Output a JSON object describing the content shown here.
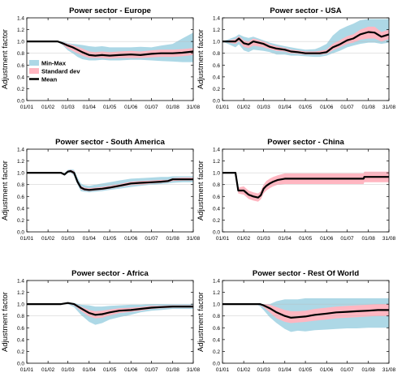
{
  "figure": {
    "ylabel": "Adjustment factor",
    "x_tick_labels": [
      "01/01",
      "01/02",
      "01/03",
      "01/04",
      "01/05",
      "01/06",
      "01/07",
      "01/08",
      "31/08"
    ],
    "y_tick_labels": [
      "0.0",
      "0.2",
      "0.4",
      "0.6",
      "0.8",
      "1.0",
      "1.2",
      "1.4"
    ],
    "legend": {
      "entries": [
        {
          "label": "Min-Max",
          "color": "#add8e6"
        },
        {
          "label": "Standard dev",
          "color": "#ffb6c1"
        },
        {
          "label": "Mean",
          "color": "#000000"
        }
      ]
    },
    "colors": {
      "minmax": "#add8e6",
      "std": "#ffb6c1",
      "mean": "#000000",
      "refline": "#bbbbbb"
    }
  },
  "chart_data": [
    {
      "type": "area",
      "title": "Power sector - Europe",
      "ylabel": "Adjustment factor",
      "xlim": [
        "01/01",
        "31/08"
      ],
      "ylim": [
        0,
        1.4
      ],
      "legend": "inside bottom-left",
      "x": [
        "01/01",
        "15/02",
        "22/02",
        "01/03",
        "08/03",
        "15/03",
        "22/03",
        "01/04",
        "10/04",
        "20/04",
        "01/05",
        "15/05",
        "01/06",
        "15/06",
        "01/07",
        "15/07",
        "01/08",
        "15/08",
        "31/08"
      ],
      "series": [
        {
          "name": "Mean",
          "values": [
            1.0,
            1.0,
            0.97,
            0.93,
            0.9,
            0.86,
            0.82,
            0.77,
            0.76,
            0.77,
            0.76,
            0.77,
            0.78,
            0.77,
            0.79,
            0.8,
            0.8,
            0.81,
            0.83
          ]
        },
        {
          "name": "Min-Max",
          "lower": [
            1.0,
            1.0,
            0.94,
            0.85,
            0.8,
            0.74,
            0.7,
            0.68,
            0.68,
            0.69,
            0.68,
            0.68,
            0.69,
            0.69,
            0.68,
            0.67,
            0.66,
            0.65,
            0.65
          ],
          "upper": [
            1.0,
            1.0,
            1.0,
            0.97,
            0.96,
            0.95,
            0.94,
            0.92,
            0.91,
            0.92,
            0.9,
            0.9,
            0.9,
            0.91,
            0.9,
            0.93,
            0.96,
            1.05,
            1.15
          ]
        },
        {
          "name": "Standard dev",
          "lower": [
            1.0,
            1.0,
            0.95,
            0.88,
            0.84,
            0.8,
            0.76,
            0.72,
            0.72,
            0.72,
            0.71,
            0.72,
            0.72,
            0.72,
            0.73,
            0.74,
            0.74,
            0.75,
            0.77
          ],
          "upper": [
            1.0,
            1.0,
            0.99,
            0.96,
            0.94,
            0.91,
            0.88,
            0.83,
            0.82,
            0.83,
            0.82,
            0.83,
            0.84,
            0.83,
            0.85,
            0.86,
            0.86,
            0.87,
            0.89
          ]
        }
      ]
    },
    {
      "type": "area",
      "title": "Power sector - USA",
      "ylabel": "Adjustment factor",
      "xlim": [
        "01/01",
        "31/08"
      ],
      "ylim": [
        0,
        1.4
      ],
      "x": [
        "01/01",
        "20/01",
        "25/01",
        "01/02",
        "08/02",
        "15/02",
        "01/03",
        "10/03",
        "20/03",
        "01/04",
        "10/04",
        "20/04",
        "01/05",
        "15/05",
        "22/05",
        "01/06",
        "10/06",
        "20/06",
        "01/07",
        "10/07",
        "20/07",
        "01/08",
        "10/08",
        "20/08",
        "31/08"
      ],
      "series": [
        {
          "name": "Mean",
          "values": [
            1.0,
            1.0,
            1.05,
            0.97,
            0.95,
            1.0,
            0.96,
            0.91,
            0.88,
            0.86,
            0.83,
            0.82,
            0.8,
            0.8,
            0.8,
            0.82,
            0.9,
            0.95,
            1.02,
            1.05,
            1.12,
            1.16,
            1.15,
            1.08,
            1.12
          ]
        },
        {
          "name": "Min-Max",
          "lower": [
            1.0,
            0.9,
            0.95,
            0.85,
            0.82,
            0.86,
            0.84,
            0.82,
            0.78,
            0.78,
            0.76,
            0.76,
            0.75,
            0.74,
            0.74,
            0.76,
            0.8,
            0.84,
            0.9,
            0.93,
            0.96,
            0.98,
            0.98,
            0.96,
            0.98
          ],
          "upper": [
            1.0,
            1.08,
            1.12,
            1.08,
            1.06,
            1.08,
            1.02,
            0.98,
            0.95,
            0.92,
            0.9,
            0.88,
            0.86,
            0.87,
            0.9,
            0.96,
            1.1,
            1.2,
            1.26,
            1.3,
            1.36,
            1.38,
            1.38,
            1.38,
            1.38
          ]
        },
        {
          "name": "Standard dev",
          "lower": [
            1.0,
            0.96,
            1.0,
            0.91,
            0.89,
            0.93,
            0.9,
            0.87,
            0.84,
            0.83,
            0.8,
            0.79,
            0.78,
            0.78,
            0.78,
            0.79,
            0.85,
            0.9,
            0.96,
            0.98,
            1.03,
            1.05,
            1.05,
            1.0,
            1.04
          ],
          "upper": [
            1.0,
            1.04,
            1.09,
            1.02,
            1.0,
            1.05,
            1.0,
            0.95,
            0.92,
            0.89,
            0.86,
            0.85,
            0.83,
            0.83,
            0.84,
            0.86,
            0.96,
            1.02,
            1.09,
            1.12,
            1.2,
            1.25,
            1.25,
            1.16,
            1.2
          ]
        }
      ]
    },
    {
      "type": "area",
      "title": "Power sector - South America",
      "ylabel": "Adjustment factor",
      "xlim": [
        "01/01",
        "31/08"
      ],
      "ylim": [
        0,
        1.4
      ],
      "x": [
        "01/01",
        "20/02",
        "25/02",
        "01/03",
        "05/03",
        "10/03",
        "15/03",
        "20/03",
        "25/03",
        "01/04",
        "10/04",
        "20/04",
        "01/05",
        "15/05",
        "01/06",
        "15/06",
        "01/07",
        "15/07",
        "25/07",
        "01/08",
        "15/08",
        "31/08"
      ],
      "series": [
        {
          "name": "Mean",
          "values": [
            1.0,
            1.0,
            0.97,
            1.02,
            1.03,
            1.0,
            0.85,
            0.75,
            0.72,
            0.71,
            0.72,
            0.73,
            0.75,
            0.78,
            0.82,
            0.83,
            0.84,
            0.85,
            0.86,
            0.89,
            0.89,
            0.89
          ]
        },
        {
          "name": "Min-Max",
          "lower": [
            1.0,
            1.0,
            0.95,
            1.0,
            1.0,
            0.95,
            0.8,
            0.69,
            0.68,
            0.67,
            0.68,
            0.69,
            0.71,
            0.73,
            0.76,
            0.78,
            0.8,
            0.81,
            0.82,
            0.83,
            0.84,
            0.84
          ],
          "upper": [
            1.0,
            1.0,
            1.0,
            1.05,
            1.06,
            1.05,
            0.92,
            0.82,
            0.79,
            0.78,
            0.8,
            0.82,
            0.84,
            0.87,
            0.9,
            0.91,
            0.92,
            0.93,
            0.93,
            0.94,
            0.94,
            0.94
          ]
        },
        {
          "name": "Standard dev",
          "lower": [
            1.0,
            1.0,
            0.96,
            1.01,
            1.01,
            0.97,
            0.82,
            0.72,
            0.7,
            0.69,
            0.7,
            0.71,
            0.73,
            0.76,
            0.79,
            0.8,
            0.82,
            0.83,
            0.84,
            0.86,
            0.87,
            0.87
          ],
          "upper": [
            1.0,
            1.0,
            0.99,
            1.04,
            1.05,
            1.03,
            0.88,
            0.78,
            0.75,
            0.74,
            0.75,
            0.76,
            0.78,
            0.81,
            0.85,
            0.86,
            0.87,
            0.88,
            0.88,
            0.91,
            0.92,
            0.92
          ]
        }
      ]
    },
    {
      "type": "area",
      "title": "Power sector - China",
      "ylabel": "Adjustment factor",
      "xlim": [
        "01/01",
        "31/08"
      ],
      "ylim": [
        0,
        1.4
      ],
      "x": [
        "01/01",
        "20/01",
        "24/01",
        "01/02",
        "08/02",
        "15/02",
        "22/02",
        "26/02",
        "01/03",
        "05/03",
        "10/03",
        "15/03",
        "22/03",
        "01/04",
        "01/05",
        "01/06",
        "01/07",
        "25/07",
        "26/07",
        "31/08"
      ],
      "series": [
        {
          "name": "Mean",
          "values": [
            1.0,
            1.0,
            0.7,
            0.7,
            0.63,
            0.6,
            0.58,
            0.62,
            0.73,
            0.78,
            0.82,
            0.85,
            0.88,
            0.9,
            0.9,
            0.9,
            0.9,
            0.9,
            0.93,
            0.93
          ]
        },
        {
          "name": "Standard dev",
          "lower": [
            1.0,
            1.0,
            0.65,
            0.63,
            0.56,
            0.53,
            0.51,
            0.55,
            0.65,
            0.7,
            0.74,
            0.77,
            0.8,
            0.81,
            0.81,
            0.81,
            0.81,
            0.81,
            0.84,
            0.84
          ],
          "upper": [
            1.0,
            1.0,
            0.75,
            0.77,
            0.7,
            0.67,
            0.65,
            0.69,
            0.8,
            0.86,
            0.9,
            0.93,
            0.96,
            0.99,
            0.99,
            0.99,
            0.99,
            0.99,
            1.02,
            1.02
          ]
        }
      ]
    },
    {
      "type": "area",
      "title": "Power sector - Africa",
      "ylabel": "Adjustment factor",
      "xlim": [
        "01/01",
        "31/08"
      ],
      "ylim": [
        0,
        1.4
      ],
      "x": [
        "01/01",
        "20/02",
        "01/03",
        "10/03",
        "20/03",
        "01/04",
        "10/04",
        "20/04",
        "01/05",
        "15/05",
        "01/06",
        "15/06",
        "01/07",
        "15/07",
        "01/08",
        "15/08",
        "31/08"
      ],
      "series": [
        {
          "name": "Mean",
          "values": [
            1.0,
            1.0,
            1.02,
            1.0,
            0.93,
            0.85,
            0.82,
            0.83,
            0.86,
            0.89,
            0.9,
            0.92,
            0.94,
            0.95,
            0.96,
            0.96,
            0.96
          ]
        },
        {
          "name": "Min-Max",
          "lower": [
            1.0,
            1.0,
            1.0,
            0.95,
            0.82,
            0.7,
            0.65,
            0.68,
            0.74,
            0.78,
            0.82,
            0.86,
            0.89,
            0.9,
            0.92,
            0.92,
            0.92
          ],
          "upper": [
            1.0,
            1.0,
            1.03,
            1.02,
            0.99,
            0.98,
            0.96,
            0.96,
            0.97,
            0.98,
            0.99,
            0.99,
            1.0,
            1.0,
            1.0,
            1.0,
            1.0
          ]
        },
        {
          "name": "Standard dev",
          "lower": [
            1.0,
            1.0,
            1.01,
            0.98,
            0.89,
            0.79,
            0.76,
            0.77,
            0.81,
            0.85,
            0.87,
            0.89,
            0.92,
            0.93,
            0.94,
            0.94,
            0.94
          ],
          "upper": [
            1.0,
            1.0,
            1.03,
            1.01,
            0.96,
            0.9,
            0.88,
            0.89,
            0.91,
            0.93,
            0.94,
            0.95,
            0.97,
            0.97,
            0.98,
            0.98,
            0.98
          ]
        }
      ]
    },
    {
      "type": "area",
      "title": "Power sector - Rest Of World",
      "ylabel": "Adjustment factor",
      "xlim": [
        "01/01",
        "31/08"
      ],
      "ylim": [
        0,
        1.4
      ],
      "x": [
        "01/01",
        "20/02",
        "25/02",
        "01/03",
        "10/03",
        "20/03",
        "01/04",
        "10/04",
        "20/04",
        "01/05",
        "15/05",
        "01/06",
        "15/06",
        "01/07",
        "15/07",
        "01/08",
        "15/08",
        "31/08"
      ],
      "series": [
        {
          "name": "Mean",
          "values": [
            1.0,
            1.0,
            1.0,
            0.98,
            0.93,
            0.86,
            0.8,
            0.77,
            0.78,
            0.79,
            0.82,
            0.84,
            0.86,
            0.87,
            0.88,
            0.89,
            0.9,
            0.9
          ]
        },
        {
          "name": "Min-Max",
          "lower": [
            1.0,
            1.0,
            0.96,
            0.9,
            0.78,
            0.68,
            0.58,
            0.53,
            0.55,
            0.54,
            0.56,
            0.57,
            0.58,
            0.59,
            0.59,
            0.6,
            0.6,
            0.6
          ],
          "upper": [
            1.0,
            1.0,
            1.0,
            1.0,
            1.0,
            1.05,
            1.08,
            1.08,
            1.08,
            1.1,
            1.1,
            1.1,
            1.1,
            1.1,
            1.1,
            1.1,
            1.1,
            1.1
          ]
        },
        {
          "name": "Standard dev",
          "lower": [
            1.0,
            1.0,
            0.98,
            0.95,
            0.86,
            0.76,
            0.7,
            0.68,
            0.69,
            0.7,
            0.72,
            0.74,
            0.76,
            0.77,
            0.78,
            0.79,
            0.8,
            0.8
          ],
          "upper": [
            1.0,
            1.0,
            1.0,
            1.0,
            0.99,
            0.95,
            0.9,
            0.88,
            0.88,
            0.89,
            0.92,
            0.94,
            0.96,
            0.97,
            0.98,
            0.99,
            1.0,
            1.0
          ]
        }
      ]
    }
  ]
}
